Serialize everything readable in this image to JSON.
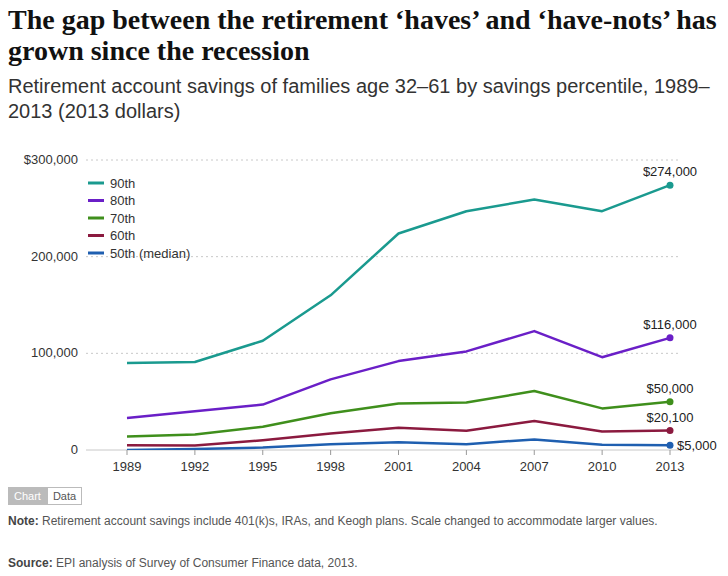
{
  "chart_data": {
    "type": "line",
    "title": "The gap between the retirement ‘haves’ and ‘have-nots’ has grown since the recession",
    "subtitle": "Retirement account savings of families age 32–61 by savings percentile, 1989–2013 (2013 dollars)",
    "categories": [
      "1989",
      "1992",
      "1995",
      "1998",
      "2001",
      "2004",
      "2007",
      "2010",
      "2013"
    ],
    "series": [
      {
        "name": "90th",
        "color": "#1a9a8f",
        "values": [
          90000,
          91000,
          113000,
          160000,
          224000,
          247000,
          259000,
          247000,
          274000
        ],
        "value_labels": [
          null,
          null,
          null,
          null,
          null,
          null,
          null,
          null,
          "$274,000"
        ]
      },
      {
        "name": "80th",
        "color": "#6a1fc7",
        "values": [
          33000,
          40000,
          47000,
          73000,
          92000,
          102000,
          123000,
          96000,
          116000
        ],
        "value_labels": [
          null,
          null,
          null,
          null,
          null,
          null,
          null,
          null,
          "$116,000"
        ]
      },
      {
        "name": "70th",
        "color": "#3f8f1c",
        "values": [
          14000,
          16000,
          24000,
          38000,
          48000,
          49000,
          61000,
          43000,
          50000
        ],
        "value_labels": [
          null,
          null,
          null,
          null,
          null,
          null,
          null,
          null,
          "$50,000"
        ]
      },
      {
        "name": "60th",
        "color": "#8b1a3f",
        "values": [
          5000,
          4500,
          10000,
          17000,
          23000,
          20000,
          30000,
          19000,
          20100
        ],
        "value_labels": [
          null,
          null,
          null,
          null,
          null,
          null,
          null,
          null,
          "$20,100"
        ]
      },
      {
        "name": "50th (median)",
        "color": "#1f5fb0",
        "values": [
          0,
          1000,
          2500,
          6000,
          8000,
          6000,
          11000,
          5500,
          5000
        ],
        "value_labels": [
          null,
          null,
          null,
          null,
          null,
          null,
          null,
          null,
          "$5,000"
        ]
      }
    ],
    "ylim": [
      0,
      300000
    ],
    "yticks": [
      0,
      {
        "value": 100000,
        "label": "100,000"
      },
      {
        "value": 200000,
        "label": "200,000"
      },
      {
        "value": 300000,
        "label": "$300,000"
      }
    ],
    "grid": true,
    "legend": "top-left",
    "tabs": [
      "Chart",
      "Data"
    ],
    "note_label": "Note:",
    "note": "Retirement account savings include 401(k)s, IRAs, and Keogh plans. Scale changed to accommodate larger values.",
    "source_label": "Source:",
    "source": "EPI analysis of  Survey of Consumer Finance data, 2013."
  }
}
